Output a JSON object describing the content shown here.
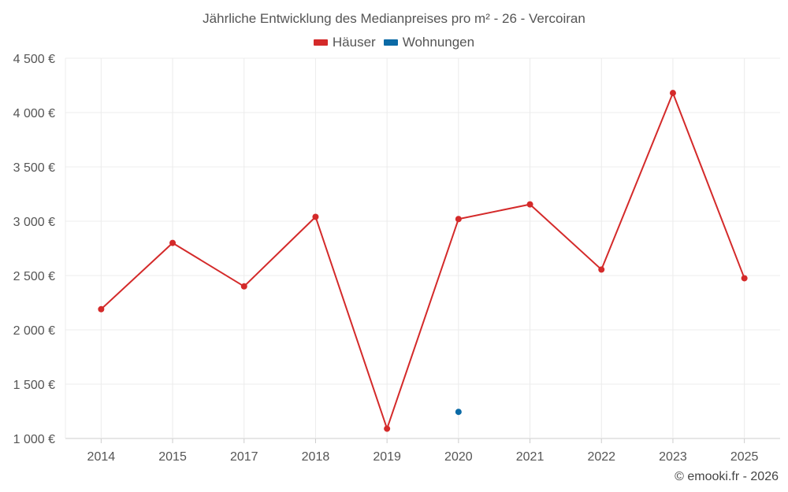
{
  "chart_data": {
    "type": "line",
    "title": "Jährliche Entwicklung des Medianpreises pro m² - 26 - Vercoiran",
    "categories": [
      "2014",
      "2015",
      "2017",
      "2018",
      "2019",
      "2020",
      "2021",
      "2022",
      "2023",
      "2025"
    ],
    "series": [
      {
        "name": "Häuser",
        "color": "#d42a2a",
        "values": [
          2190,
          2800,
          2400,
          3040,
          1090,
          3020,
          3155,
          2555,
          4180,
          2475
        ]
      },
      {
        "name": "Wohnungen",
        "color": "#0b6aa6",
        "values": [
          null,
          null,
          null,
          null,
          null,
          1245,
          null,
          null,
          null,
          null
        ]
      }
    ],
    "ylim": [
      1000,
      4500
    ],
    "yticks": [
      1000,
      1500,
      2000,
      2500,
      3000,
      3500,
      4000,
      4500
    ],
    "ytick_labels": [
      "1 000 €",
      "1 500 €",
      "2 000 €",
      "2 500 €",
      "3 000 €",
      "3 500 €",
      "4 000 €",
      "4 500 €"
    ],
    "xlabel": "",
    "ylabel": "",
    "grid": true,
    "legend_position": "top-center"
  },
  "footer": {
    "copyright": "© emooki.fr - 2026"
  }
}
